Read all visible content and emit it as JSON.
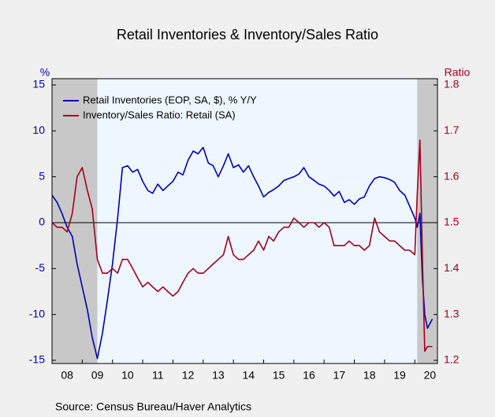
{
  "chart_data": {
    "type": "line",
    "title": "Retail Inventories & Inventory/Sales Ratio",
    "ylabel": "%",
    "y2label": "Ratio",
    "source": "Source:  Census Bureau/Haver Analytics",
    "xlim": [
      2008,
      2020.75
    ],
    "xticks": [
      {
        "value": 2008,
        "label": "08"
      },
      {
        "value": 2009,
        "label": "09"
      },
      {
        "value": 2010,
        "label": "10"
      },
      {
        "value": 2011,
        "label": "11"
      },
      {
        "value": 2012,
        "label": "12"
      },
      {
        "value": 2013,
        "label": "13"
      },
      {
        "value": 2014,
        "label": "14"
      },
      {
        "value": 2015,
        "label": "15"
      },
      {
        "value": 2016,
        "label": "16"
      },
      {
        "value": 2017,
        "label": "17"
      },
      {
        "value": 2018,
        "label": "18"
      },
      {
        "value": 2019,
        "label": "19"
      },
      {
        "value": 2020,
        "label": "20"
      }
    ],
    "ylim": [
      -15,
      15
    ],
    "yticks": [
      -15,
      -10,
      -5,
      0,
      5,
      10,
      15
    ],
    "y2lim": [
      1.2,
      1.8
    ],
    "y2ticks": [
      1.2,
      1.3,
      1.4,
      1.5,
      1.6,
      1.7,
      1.8
    ],
    "reference_line": 0,
    "shaded_ranges": [
      [
        2008,
        2009.5
      ],
      [
        2020.08,
        2020.75
      ]
    ],
    "legend": "upper left",
    "x": [
      2008.0,
      2008.17,
      2008.33,
      2008.5,
      2008.67,
      2008.83,
      2009.0,
      2009.17,
      2009.33,
      2009.5,
      2009.67,
      2009.83,
      2010.0,
      2010.17,
      2010.33,
      2010.5,
      2010.67,
      2010.83,
      2011.0,
      2011.17,
      2011.33,
      2011.5,
      2011.67,
      2011.83,
      2012.0,
      2012.17,
      2012.33,
      2012.5,
      2012.67,
      2012.83,
      2013.0,
      2013.17,
      2013.33,
      2013.5,
      2013.67,
      2013.83,
      2014.0,
      2014.17,
      2014.33,
      2014.5,
      2014.67,
      2014.83,
      2015.0,
      2015.17,
      2015.33,
      2015.5,
      2015.67,
      2015.83,
      2016.0,
      2016.17,
      2016.33,
      2016.5,
      2016.67,
      2016.83,
      2017.0,
      2017.17,
      2017.33,
      2017.5,
      2017.67,
      2017.83,
      2018.0,
      2018.17,
      2018.33,
      2018.5,
      2018.67,
      2018.83,
      2019.0,
      2019.17,
      2019.33,
      2019.5,
      2019.67,
      2019.83,
      2020.0,
      2020.08,
      2020.17,
      2020.25,
      2020.33,
      2020.42,
      2020.5,
      2020.58
    ],
    "series": [
      {
        "name": "Retail Inventories (EOP, SA, $), % Y/Y",
        "color": "#0000b4",
        "values": [
          3.0,
          2.2,
          1.0,
          -0.5,
          -1.5,
          -4.5,
          -7,
          -9.5,
          -12.5,
          -14.8,
          -12,
          -8.5,
          -4.5,
          0.5,
          6,
          6.2,
          5.5,
          5.8,
          4.5,
          3.5,
          3.2,
          4.2,
          3.5,
          4,
          4.5,
          5.5,
          5.2,
          6.8,
          7.8,
          7.5,
          8.2,
          6.5,
          6.2,
          5.0,
          6.2,
          7.5,
          6.0,
          6.3,
          5.5,
          6.2,
          5.0,
          4.0,
          2.8,
          3.3,
          3.6,
          4.0,
          4.6,
          4.8,
          5.0,
          5.3,
          6.0,
          5.0,
          4.6,
          4.2,
          4.0,
          3.5,
          2.9,
          3.4,
          2.2,
          2.5,
          2.0,
          2.6,
          2.8,
          4.0,
          4.8,
          5.0,
          4.9,
          4.7,
          4.4,
          3.5,
          3.0,
          1.8,
          0.5,
          -0.5,
          1.0,
          -6,
          -10,
          -11.5,
          -11,
          -10.5
        ]
      },
      {
        "name": "Inventory/Sales Ratio: Retail (SA)",
        "color": "#a0001e",
        "axis": "y2",
        "values": [
          1.5,
          1.49,
          1.49,
          1.48,
          1.52,
          1.6,
          1.62,
          1.57,
          1.53,
          1.42,
          1.39,
          1.39,
          1.4,
          1.39,
          1.42,
          1.42,
          1.4,
          1.38,
          1.36,
          1.37,
          1.36,
          1.35,
          1.36,
          1.35,
          1.34,
          1.35,
          1.37,
          1.39,
          1.4,
          1.39,
          1.39,
          1.4,
          1.41,
          1.42,
          1.43,
          1.47,
          1.43,
          1.42,
          1.42,
          1.43,
          1.44,
          1.46,
          1.44,
          1.47,
          1.46,
          1.48,
          1.49,
          1.49,
          1.51,
          1.5,
          1.49,
          1.5,
          1.5,
          1.49,
          1.5,
          1.49,
          1.45,
          1.45,
          1.45,
          1.46,
          1.45,
          1.45,
          1.44,
          1.45,
          1.51,
          1.48,
          1.47,
          1.46,
          1.46,
          1.45,
          1.44,
          1.44,
          1.43,
          1.56,
          1.68,
          1.43,
          1.22,
          1.23,
          1.23,
          1.23
        ]
      }
    ]
  }
}
